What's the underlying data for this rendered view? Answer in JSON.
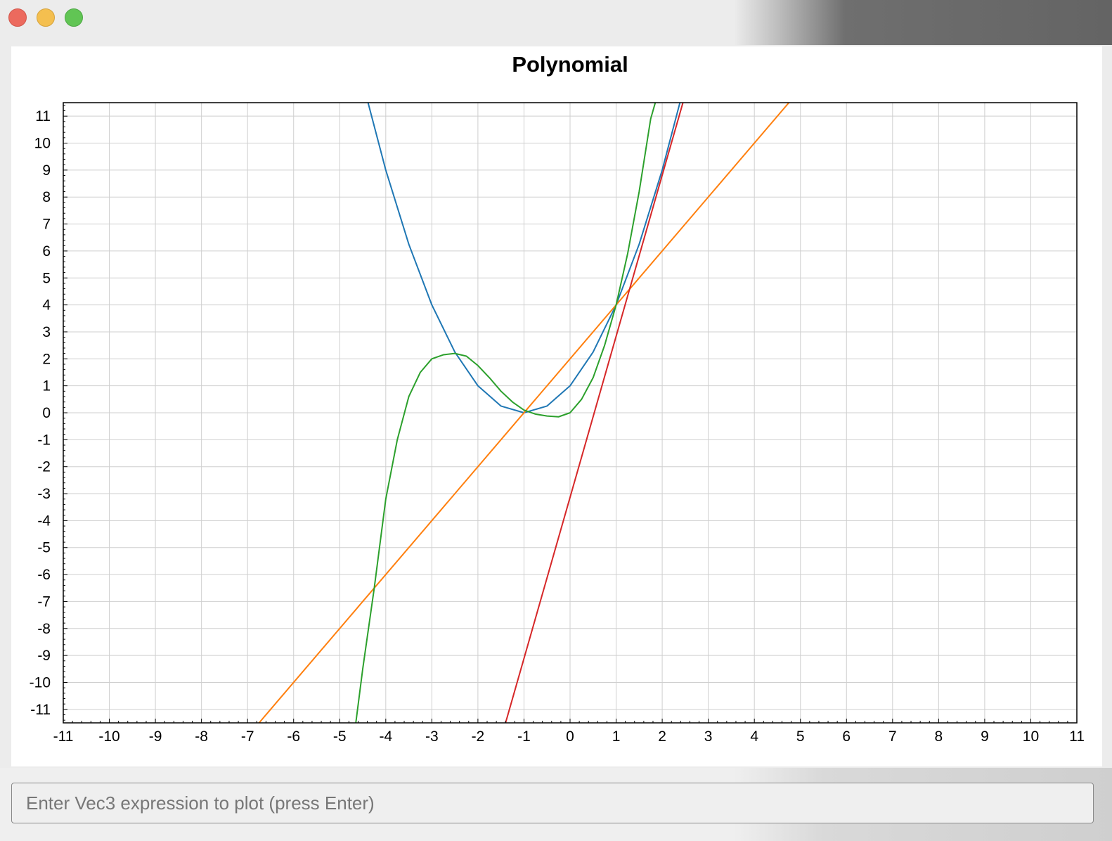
{
  "window": {
    "controls": [
      "close",
      "minimize",
      "zoom"
    ],
    "colors": {
      "close": "#ec6a5e",
      "minimize": "#f4bf4f",
      "zoom": "#61c554"
    }
  },
  "input": {
    "placeholder": "Enter Vec3 expression to plot (press Enter)",
    "value": ""
  },
  "chart_data": {
    "type": "line",
    "title": "Polynomial",
    "xlabel": "",
    "ylabel": "",
    "xlim": [
      -11,
      11
    ],
    "ylim": [
      -11.5,
      11.5
    ],
    "grid": true,
    "xticks": [
      "-11",
      "-10",
      "-9",
      "-8",
      "-7",
      "-6",
      "-5",
      "-4",
      "-3",
      "-2",
      "-1",
      "0",
      "1",
      "2",
      "3",
      "4",
      "5",
      "6",
      "7",
      "8",
      "9",
      "10",
      "11"
    ],
    "yticks": [
      "11",
      "10",
      "9",
      "8",
      "7",
      "6",
      "5",
      "4",
      "3",
      "2",
      "1",
      "0",
      "-1",
      "-2",
      "-3",
      "-4",
      "-5",
      "-6",
      "-7",
      "-8",
      "-9",
      "-10",
      "-11"
    ],
    "series": [
      {
        "color": "#1f77b4",
        "points": [
          [
            -4.5,
            12.25
          ],
          [
            -4.0,
            9.0
          ],
          [
            -3.5,
            6.25
          ],
          [
            -3.0,
            4.0
          ],
          [
            -2.5,
            2.25
          ],
          [
            -2.0,
            1.0
          ],
          [
            -1.5,
            0.25
          ],
          [
            -1.0,
            0.0
          ],
          [
            -0.5,
            0.25
          ],
          [
            0.0,
            1.0
          ],
          [
            0.5,
            2.25
          ],
          [
            1.0,
            4.0
          ],
          [
            1.5,
            6.25
          ],
          [
            2.0,
            9.0
          ],
          [
            2.5,
            12.25
          ]
        ]
      },
      {
        "color": "#ff7f0e",
        "points": [
          [
            -6.75,
            -11.5
          ],
          [
            4.75,
            11.5
          ]
        ]
      },
      {
        "color": "#2ca02c",
        "points": [
          [
            -4.65,
            -11.5
          ],
          [
            -4.5,
            -9.5
          ],
          [
            -4.25,
            -6.5
          ],
          [
            -4.0,
            -3.2
          ],
          [
            -3.75,
            -1.0
          ],
          [
            -3.5,
            0.6
          ],
          [
            -3.25,
            1.5
          ],
          [
            -3.0,
            2.0
          ],
          [
            -2.75,
            2.15
          ],
          [
            -2.5,
            2.2
          ],
          [
            -2.25,
            2.1
          ],
          [
            -2.0,
            1.75
          ],
          [
            -1.75,
            1.3
          ],
          [
            -1.5,
            0.8
          ],
          [
            -1.25,
            0.4
          ],
          [
            -1.0,
            0.1
          ],
          [
            -0.75,
            -0.05
          ],
          [
            -0.5,
            -0.12
          ],
          [
            -0.25,
            -0.15
          ],
          [
            0.0,
            0.0
          ],
          [
            0.25,
            0.5
          ],
          [
            0.5,
            1.3
          ],
          [
            0.75,
            2.5
          ],
          [
            1.0,
            4.0
          ],
          [
            1.25,
            5.9
          ],
          [
            1.5,
            8.2
          ],
          [
            1.75,
            10.9
          ],
          [
            1.85,
            11.5
          ]
        ]
      },
      {
        "color": "#d62728",
        "points": [
          [
            -1.4,
            -11.5
          ],
          [
            2.45,
            11.5
          ]
        ]
      }
    ]
  }
}
